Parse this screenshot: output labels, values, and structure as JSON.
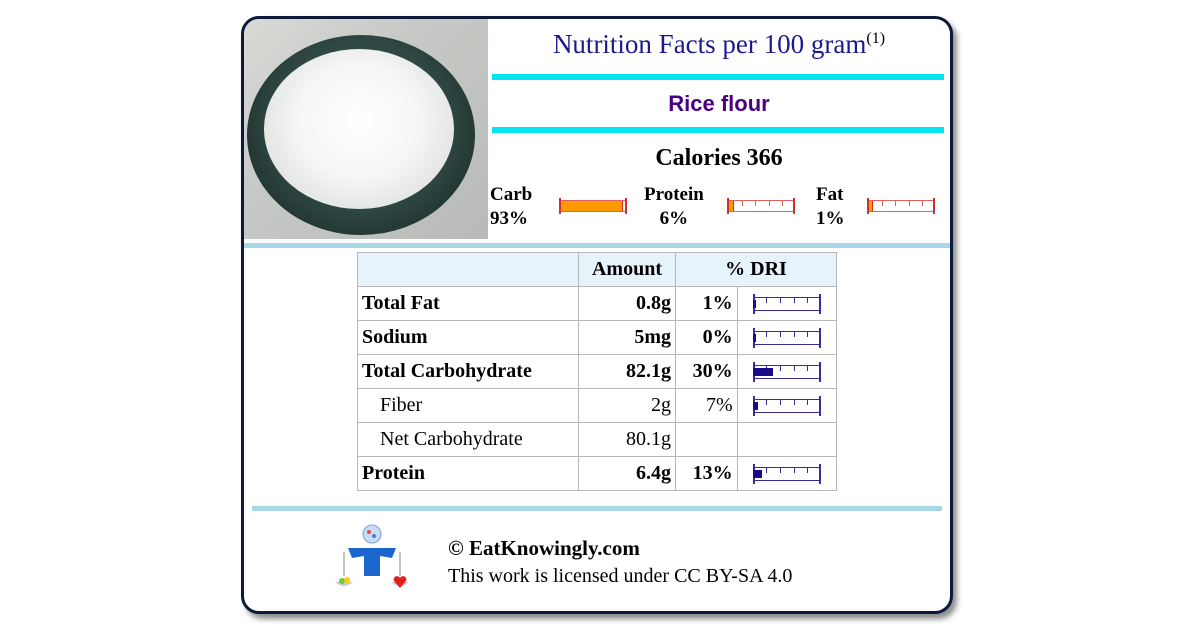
{
  "header": {
    "title": "Nutrition Facts per 100 gram",
    "footnote_mark": "(1)",
    "food_name": "Rice flour",
    "calories_label": "Calories 366"
  },
  "macros": [
    {
      "label": "Carb",
      "pct": "93%",
      "fraction": 0.93
    },
    {
      "label": "Protein",
      "pct": "6%",
      "fraction": 0.06
    },
    {
      "label": "Fat",
      "pct": "1%",
      "fraction": 0.01
    }
  ],
  "table": {
    "headers": [
      "Amount",
      "% DRI"
    ],
    "rows": [
      {
        "name": "Total Fat",
        "amount": "0.8g",
        "dri": "1%",
        "fraction": 0.01,
        "style": "bold"
      },
      {
        "name": "Sodium",
        "amount": "5mg",
        "dri": "0%",
        "fraction": 0.0,
        "style": "bold"
      },
      {
        "name": "Total Carbohydrate",
        "amount": "82.1g",
        "dri": "30%",
        "fraction": 0.3,
        "style": "bold"
      },
      {
        "name": "Fiber",
        "amount": "2g",
        "dri": "7%",
        "fraction": 0.07,
        "style": "sub"
      },
      {
        "name": "Net Carbohydrate",
        "amount": "80.1g",
        "dri": "",
        "fraction": null,
        "style": "sub"
      },
      {
        "name": "Protein",
        "amount": "6.4g",
        "dri": "13%",
        "fraction": 0.13,
        "style": "bold"
      }
    ]
  },
  "footer": {
    "copyright": "© EatKnowingly.com",
    "license": "This work is licensed under CC BY-SA 4.0"
  },
  "colors": {
    "title": "#1a1a8c",
    "food_name": "#4b0082",
    "cyan_rule": "#00e5f0",
    "divider": "#a8d8e8",
    "macro_fill": "#ff9900",
    "dri_bar": "#3a2a9a"
  }
}
